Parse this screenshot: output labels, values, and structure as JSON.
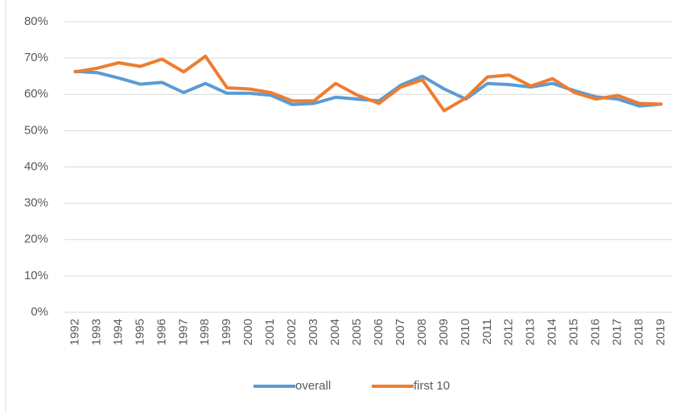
{
  "chart_data": {
    "type": "line",
    "categories": [
      "1992",
      "1993",
      "1994",
      "1995",
      "1996",
      "1997",
      "1998",
      "1999",
      "2000",
      "2001",
      "2002",
      "2003",
      "2004",
      "2005",
      "2006",
      "2007",
      "2008",
      "2009",
      "2010",
      "2011",
      "2012",
      "2013",
      "2014",
      "2015",
      "2016",
      "2017",
      "2018",
      "2019"
    ],
    "series": [
      {
        "name": "overall",
        "color": "#5b9bd5",
        "values": [
          66.3,
          66,
          64.5,
          62.8,
          63.3,
          60.5,
          63,
          60.3,
          60.3,
          59.8,
          57.2,
          57.5,
          59.2,
          58.7,
          58.2,
          62.5,
          65,
          61.5,
          58.7,
          63,
          62.7,
          62,
          63,
          61,
          59.3,
          58.7,
          56.8,
          57.3
        ]
      },
      {
        "name": "first 10",
        "color": "#ed7d31",
        "values": [
          66.2,
          67.2,
          68.7,
          67.7,
          69.7,
          66.2,
          70.5,
          61.8,
          61.5,
          60.5,
          58.2,
          58.2,
          63,
          59.8,
          57.5,
          62,
          64,
          55.5,
          59,
          64.8,
          65.3,
          62.3,
          64.3,
          60.5,
          58.7,
          59.7,
          57.5,
          57.3
        ]
      }
    ],
    "ylim": [
      0,
      80
    ],
    "yticks": [
      {
        "value": 0,
        "label": "0%"
      },
      {
        "value": 10,
        "label": "10%"
      },
      {
        "value": 20,
        "label": "20%"
      },
      {
        "value": 30,
        "label": "30%"
      },
      {
        "value": 40,
        "label": "40%"
      },
      {
        "value": 50,
        "label": "50%"
      },
      {
        "value": 60,
        "label": "60%"
      },
      {
        "value": 70,
        "label": "70%"
      },
      {
        "value": 80,
        "label": "80%"
      }
    ],
    "grid": true,
    "legend": "bottom"
  }
}
